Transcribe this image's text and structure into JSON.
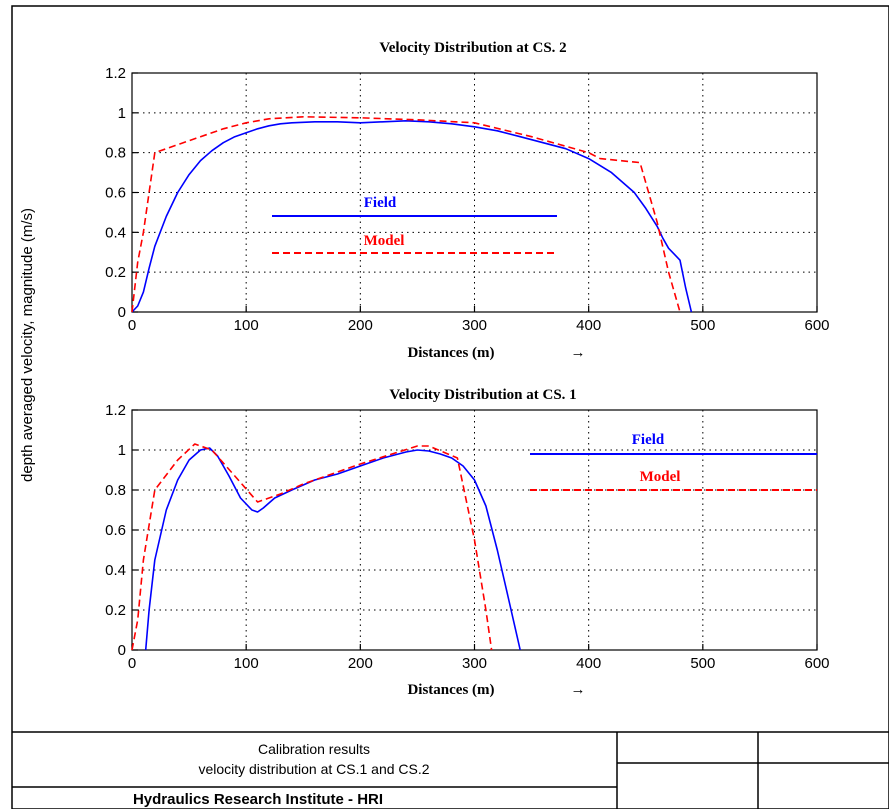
{
  "ylabel_shared": "depth averaged velocity, magnitude (m/s)",
  "arrow_glyph": "→",
  "chart_data": [
    {
      "type": "line",
      "title": "Velocity Distribution at CS. 2",
      "xlabel": "Distances (m)",
      "ylabel": "depth averaged velocity, magnitude (m/s)",
      "xlim": [
        0,
        600
      ],
      "ylim": [
        0,
        1.2
      ],
      "xticks": [
        0,
        100,
        200,
        300,
        400,
        500,
        600
      ],
      "yticks": [
        0,
        0.2,
        0.4,
        0.6,
        0.8,
        1,
        1.2
      ],
      "xtick_labels": [
        "0",
        "100",
        "200",
        "300",
        "400",
        "500",
        "600"
      ],
      "ytick_labels": [
        "0",
        "0.2",
        "0.4",
        "0.6",
        "0.8",
        "1",
        "1.2"
      ],
      "grid": true,
      "legend_position": "center-left",
      "series": [
        {
          "name": "Field",
          "color": "#0000ff",
          "style": "solid",
          "x": [
            0,
            5,
            10,
            15,
            20,
            30,
            40,
            50,
            60,
            70,
            80,
            90,
            100,
            110,
            120,
            130,
            140,
            160,
            180,
            200,
            220,
            240,
            260,
            280,
            300,
            320,
            340,
            360,
            380,
            400,
            420,
            440,
            450,
            460,
            465,
            470,
            475,
            480,
            485,
            490
          ],
          "y": [
            0,
            0.03,
            0.1,
            0.22,
            0.33,
            0.48,
            0.6,
            0.69,
            0.76,
            0.81,
            0.85,
            0.88,
            0.9,
            0.92,
            0.935,
            0.945,
            0.95,
            0.955,
            0.955,
            0.95,
            0.955,
            0.96,
            0.955,
            0.945,
            0.93,
            0.91,
            0.88,
            0.85,
            0.82,
            0.77,
            0.7,
            0.6,
            0.52,
            0.43,
            0.37,
            0.32,
            0.29,
            0.26,
            0.12,
            0
          ]
        },
        {
          "name": "Model",
          "color": "#ff0000",
          "style": "dashed",
          "x": [
            0,
            5,
            10,
            20,
            50,
            80,
            100,
            120,
            150,
            200,
            250,
            300,
            350,
            400,
            410,
            445,
            460,
            470,
            480
          ],
          "y": [
            0,
            0.25,
            0.4,
            0.8,
            0.86,
            0.92,
            0.95,
            0.97,
            0.98,
            0.975,
            0.965,
            0.95,
            0.88,
            0.8,
            0.77,
            0.75,
            0.45,
            0.2,
            0
          ]
        }
      ]
    },
    {
      "type": "line",
      "title": "Velocity Distribution at CS. 1",
      "xlabel": "Distances (m)",
      "ylabel": "depth averaged velocity, magnitude (m/s)",
      "xlim": [
        0,
        600
      ],
      "ylim": [
        0,
        1.2
      ],
      "xticks": [
        0,
        100,
        200,
        300,
        400,
        500,
        600
      ],
      "yticks": [
        0,
        0.2,
        0.4,
        0.6,
        0.8,
        1,
        1.2
      ],
      "xtick_labels": [
        "0",
        "100",
        "200",
        "300",
        "400",
        "500",
        "600"
      ],
      "ytick_labels": [
        "0",
        "0.2",
        "0.4",
        "0.6",
        "0.8",
        "1",
        "1.2"
      ],
      "grid": true,
      "legend_position": "top-right",
      "series": [
        {
          "name": "Field",
          "color": "#0000ff",
          "style": "solid",
          "x": [
            12,
            15,
            20,
            30,
            40,
            50,
            60,
            68,
            75,
            85,
            95,
            105,
            110,
            115,
            125,
            140,
            160,
            180,
            200,
            220,
            240,
            250,
            260,
            270,
            280,
            290,
            300,
            310,
            320,
            330,
            340
          ],
          "y": [
            0,
            0.2,
            0.45,
            0.7,
            0.85,
            0.95,
            1.0,
            1.01,
            0.97,
            0.87,
            0.76,
            0.7,
            0.69,
            0.71,
            0.76,
            0.8,
            0.85,
            0.88,
            0.92,
            0.96,
            0.99,
            1.0,
            0.995,
            0.98,
            0.96,
            0.92,
            0.85,
            0.72,
            0.5,
            0.25,
            0
          ]
        },
        {
          "name": "Model",
          "color": "#ff0000",
          "style": "dashed",
          "x": [
            0,
            5,
            10,
            20,
            40,
            55,
            70,
            90,
            110,
            130,
            150,
            200,
            250,
            260,
            285,
            300,
            310,
            315
          ],
          "y": [
            0,
            0.15,
            0.45,
            0.8,
            0.95,
            1.03,
            1.0,
            0.87,
            0.74,
            0.78,
            0.83,
            0.93,
            1.02,
            1.02,
            0.96,
            0.55,
            0.2,
            0
          ]
        }
      ]
    }
  ],
  "title_block": {
    "caption_line1": "Calibration results",
    "caption_line2": "velocity distribution at CS.1 and CS.2",
    "institute": "Hydraulics Research Institute - HRI"
  }
}
